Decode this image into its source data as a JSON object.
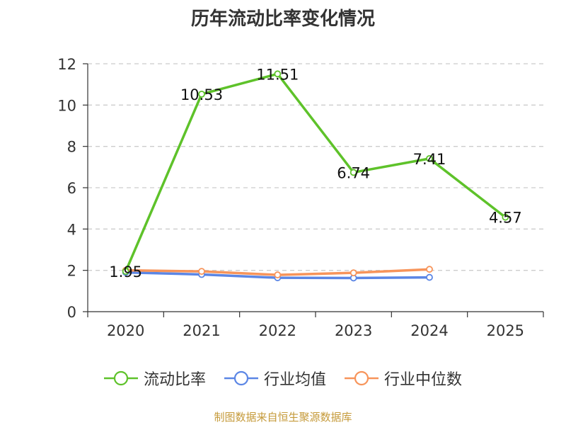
{
  "chart_data": {
    "type": "line",
    "title": "历年流动比率变化情况",
    "categories": [
      "2020",
      "2021",
      "2022",
      "2023",
      "2024",
      "2025"
    ],
    "ylim": [
      0,
      12
    ],
    "yticks": [
      0,
      2,
      4,
      6,
      8,
      10,
      12
    ],
    "grid": true,
    "legend_position": "bottom",
    "series": [
      {
        "name": "流动比率",
        "color": "#5ec22a",
        "values": [
          1.95,
          10.53,
          11.51,
          6.74,
          7.41,
          4.57
        ],
        "labels": [
          "1.95",
          "10.53",
          "11.51",
          "6.74",
          "7.41",
          "4.57"
        ]
      },
      {
        "name": "行业均值",
        "color": "#5b86e5",
        "values": [
          1.9,
          1.8,
          1.64,
          1.63,
          1.66,
          null
        ]
      },
      {
        "name": "行业中位数",
        "color": "#f7945a",
        "values": [
          2.0,
          1.95,
          1.78,
          1.88,
          2.05,
          null
        ]
      }
    ]
  },
  "footer": {
    "source": "制图数据来自恒生聚源数据库"
  }
}
